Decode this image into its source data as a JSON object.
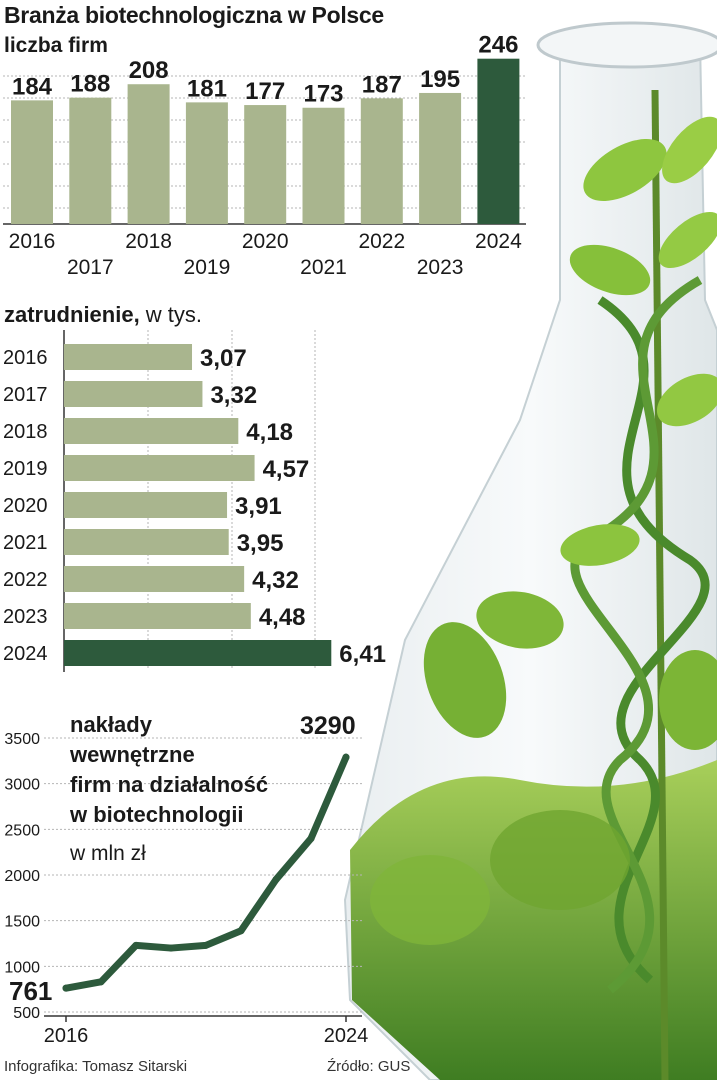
{
  "header": {
    "title": "Branża biotechnologiczna w Polsce",
    "subtitle": "liczba firm"
  },
  "employment": {
    "label_bold": "zatrudnienie,",
    "label_rest": " w tys."
  },
  "footer": {
    "credit": "Infografika: Tomasz Sitarski",
    "source": "Źródło: GUS"
  },
  "colors": {
    "bar_light": "#a9b58e",
    "bar_dark": "#2d5a3c",
    "line": "#2d5a3c",
    "grid": "#b5b5b5"
  },
  "chart_data": [
    {
      "type": "bar",
      "title": "liczba firm",
      "categories": [
        "2016",
        "2017",
        "2018",
        "2019",
        "2020",
        "2021",
        "2022",
        "2023",
        "2024"
      ],
      "values": [
        184,
        188,
        208,
        181,
        177,
        173,
        187,
        195,
        246
      ],
      "value_labels": [
        "184",
        "188",
        "208",
        "181",
        "177",
        "173",
        "187",
        "195",
        "246"
      ],
      "highlight": "2024",
      "ylim": [
        0,
        250
      ]
    },
    {
      "type": "bar",
      "orientation": "horizontal",
      "title": "zatrudnienie, w tys.",
      "categories": [
        "2016",
        "2017",
        "2018",
        "2019",
        "2020",
        "2021",
        "2022",
        "2023",
        "2024"
      ],
      "values": [
        3.07,
        3.32,
        4.18,
        4.57,
        3.91,
        3.95,
        4.32,
        4.48,
        6.41
      ],
      "value_labels": [
        "3,07",
        "3,32",
        "4,18",
        "4,57",
        "3,91",
        "3,95",
        "4,32",
        "4,48",
        "6,41"
      ],
      "highlight": "2024",
      "xlim": [
        0,
        8
      ]
    },
    {
      "type": "line",
      "title_lines": [
        "nakłady",
        "wewnętrzne",
        "firm na działalność",
        "w biotechnologii"
      ],
      "unit": "w mln zł",
      "x": [
        2016,
        2017,
        2018,
        2019,
        2020,
        2021,
        2022,
        2023,
        2024
      ],
      "values": [
        761,
        830,
        1230,
        1200,
        1230,
        1390,
        1950,
        2400,
        3290
      ],
      "start_label": "761",
      "end_label": "3290",
      "x_tick_labels": [
        "2016",
        "2024"
      ],
      "y_ticks": [
        500,
        1000,
        1500,
        2000,
        2500,
        3000,
        3500
      ],
      "ylim": [
        500,
        3500
      ]
    }
  ]
}
